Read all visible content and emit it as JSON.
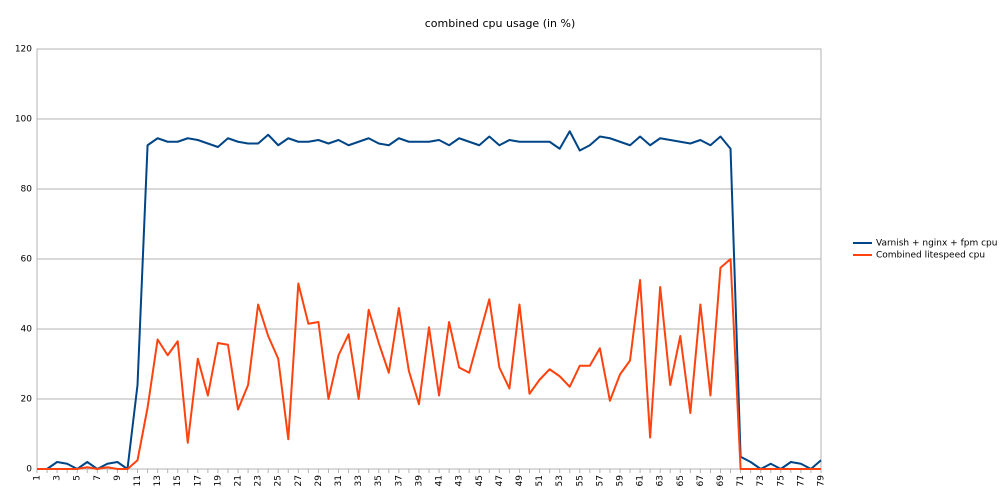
{
  "chart_data": {
    "type": "line",
    "title": "combined cpu usage (in %)",
    "categories": [
      1,
      null,
      3,
      null,
      5,
      null,
      7,
      null,
      9,
      null,
      11,
      null,
      13,
      null,
      15,
      null,
      17,
      null,
      19,
      null,
      21,
      null,
      23,
      null,
      25,
      null,
      27,
      null,
      29,
      null,
      31,
      null,
      33,
      null,
      35,
      null,
      37,
      null,
      39,
      null,
      41,
      null,
      43,
      null,
      45,
      null,
      47,
      null,
      49,
      null,
      51,
      null,
      53,
      null,
      55,
      null,
      57,
      null,
      59,
      null,
      61,
      null,
      63,
      null,
      65,
      null,
      67,
      null,
      69,
      null,
      71,
      null,
      73,
      null,
      75,
      null,
      77,
      null,
      79
    ],
    "series": [
      {
        "name": "Varnish + nginx + fpm cpu",
        "color": "#004586",
        "values": [
          0,
          0,
          2,
          1.5,
          0,
          2,
          0,
          1.5,
          2,
          0,
          24,
          92.5,
          94.5,
          93.5,
          93.5,
          94.5,
          94,
          93,
          92,
          94.5,
          93.5,
          93,
          93,
          95.5,
          92.5,
          94.5,
          93.5,
          93.5,
          94,
          93,
          94,
          92.5,
          93.5,
          94.5,
          93,
          92.5,
          94.5,
          93.5,
          93.5,
          93.5,
          94,
          92.5,
          94.5,
          93.5,
          92.5,
          95,
          92.5,
          94,
          93.5,
          93.5,
          93.5,
          93.5,
          91.5,
          96.5,
          91,
          92.5,
          95,
          94.5,
          93.5,
          92.5,
          95,
          92.5,
          94.5,
          94,
          93.5,
          93,
          94,
          92.5,
          95,
          91.5,
          3.5,
          2,
          0,
          1.5,
          0,
          2,
          1.5,
          0,
          2.5
        ]
      },
      {
        "name": "Combined litespeed cpu",
        "color": "#ff420e",
        "values": [
          0,
          0,
          0,
          0,
          0,
          0.5,
          0,
          0.5,
          0,
          0,
          2.5,
          17.5,
          37,
          32.5,
          36.5,
          7.5,
          31.5,
          21,
          36,
          35.5,
          17,
          24,
          47,
          38,
          31.5,
          8.5,
          53,
          41.5,
          42,
          20,
          32.5,
          38.5,
          20,
          45.5,
          36,
          27.5,
          46,
          28,
          18.5,
          40.5,
          21,
          42,
          29,
          27.5,
          38,
          48.5,
          29,
          23,
          47,
          21.5,
          25.5,
          28.5,
          26.5,
          23.5,
          29.5,
          29.5,
          34.5,
          19.5,
          27,
          31,
          54,
          9,
          52,
          24,
          38,
          16,
          47,
          21,
          57.5,
          60,
          0,
          0,
          0,
          0,
          0,
          0,
          0,
          0,
          0
        ]
      }
    ],
    "ylim": [
      0,
      120
    ],
    "yticks": [
      0,
      20,
      40,
      60,
      80,
      100,
      120
    ],
    "grid": true,
    "legend": "right"
  }
}
